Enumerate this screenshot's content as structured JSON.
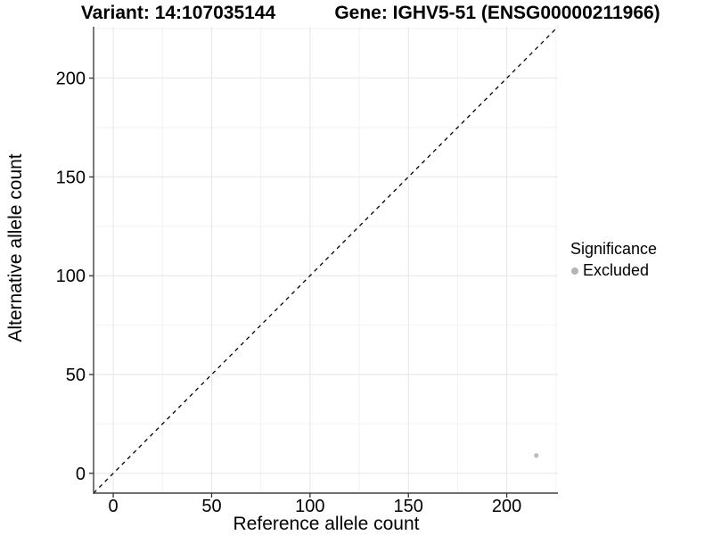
{
  "chart_data": {
    "type": "scatter",
    "titles": {
      "left": "Variant: 14:107035144",
      "right": "Gene: IGHV5-51 (ENSG00000211966)"
    },
    "xlabel": "Reference allele count",
    "ylabel": "Alternative allele count",
    "xlim": [
      -10,
      226
    ],
    "ylim": [
      -10,
      226
    ],
    "x_major_ticks": [
      0,
      50,
      100,
      150,
      200
    ],
    "y_major_ticks": [
      0,
      50,
      100,
      150,
      200
    ],
    "x_minor_gridlines": [
      25,
      75,
      125,
      175,
      225
    ],
    "y_minor_gridlines": [
      25,
      75,
      125,
      175,
      225
    ],
    "grid": true,
    "identity_line": {
      "style": "dashed",
      "equation": "y = x",
      "from": -10,
      "to": 226
    },
    "series": [
      {
        "name": "Excluded",
        "color": "#bdbdbd",
        "points": [
          {
            "x": 215,
            "y": 9
          }
        ]
      }
    ],
    "legend": {
      "title": "Significance",
      "position": "right",
      "items": [
        {
          "label": "Excluded",
          "color": "#b5b5b5"
        }
      ]
    },
    "colors": {
      "background": "#ffffff",
      "axis_line": "#404040",
      "tick_mark": "#333333",
      "tick_label": "#000000",
      "grid_major": "#e6e6e6",
      "grid_minor": "#f2f2f2",
      "identity_line": "#000000"
    }
  }
}
